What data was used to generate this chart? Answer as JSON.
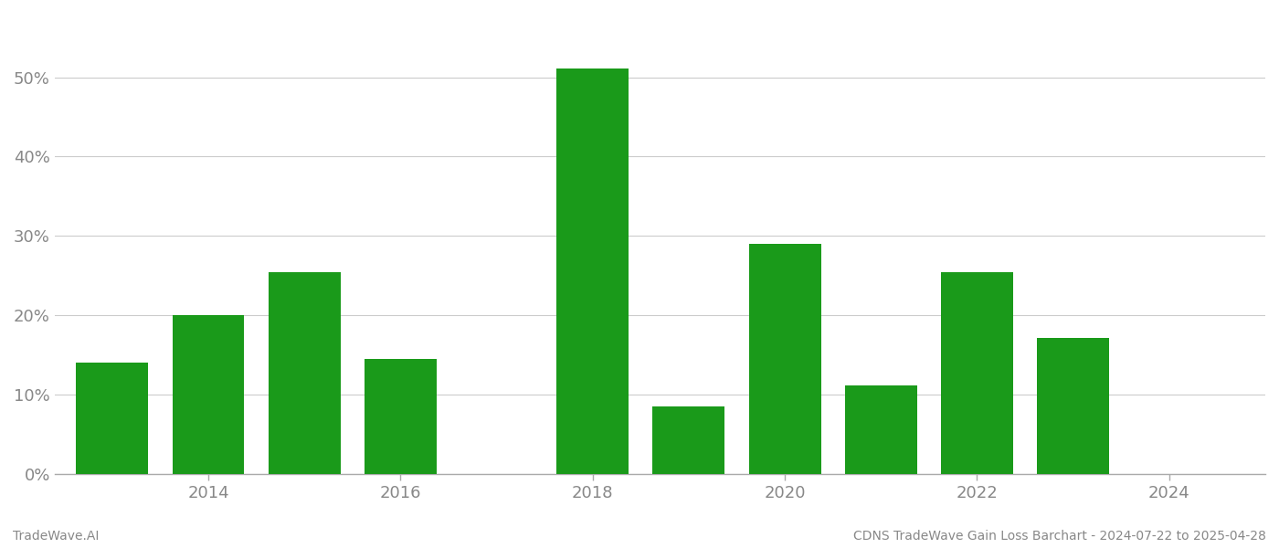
{
  "years": [
    2013,
    2014,
    2015,
    2016,
    2018,
    2019,
    2020,
    2021,
    2022,
    2023
  ],
  "values": [
    0.14,
    0.2,
    0.254,
    0.145,
    0.511,
    0.085,
    0.29,
    0.112,
    0.254,
    0.172
  ],
  "bar_color": "#1a9a1a",
  "background_color": "#ffffff",
  "grid_color": "#cccccc",
  "axis_color": "#aaaaaa",
  "text_color": "#888888",
  "footer_left": "TradeWave.AI",
  "footer_right": "CDNS TradeWave Gain Loss Barchart - 2024-07-22 to 2025-04-28",
  "ylim": [
    0,
    0.58
  ],
  "yticks": [
    0.0,
    0.1,
    0.2,
    0.3,
    0.4,
    0.5
  ],
  "xtick_positions": [
    2014,
    2016,
    2018,
    2020,
    2022,
    2024
  ],
  "xtick_labels": [
    "2014",
    "2016",
    "2018",
    "2020",
    "2022",
    "2024"
  ],
  "xlim": [
    2012.4,
    2025.0
  ],
  "bar_width": 0.75,
  "footer_fontsize": 10,
  "tick_fontsize": 13
}
